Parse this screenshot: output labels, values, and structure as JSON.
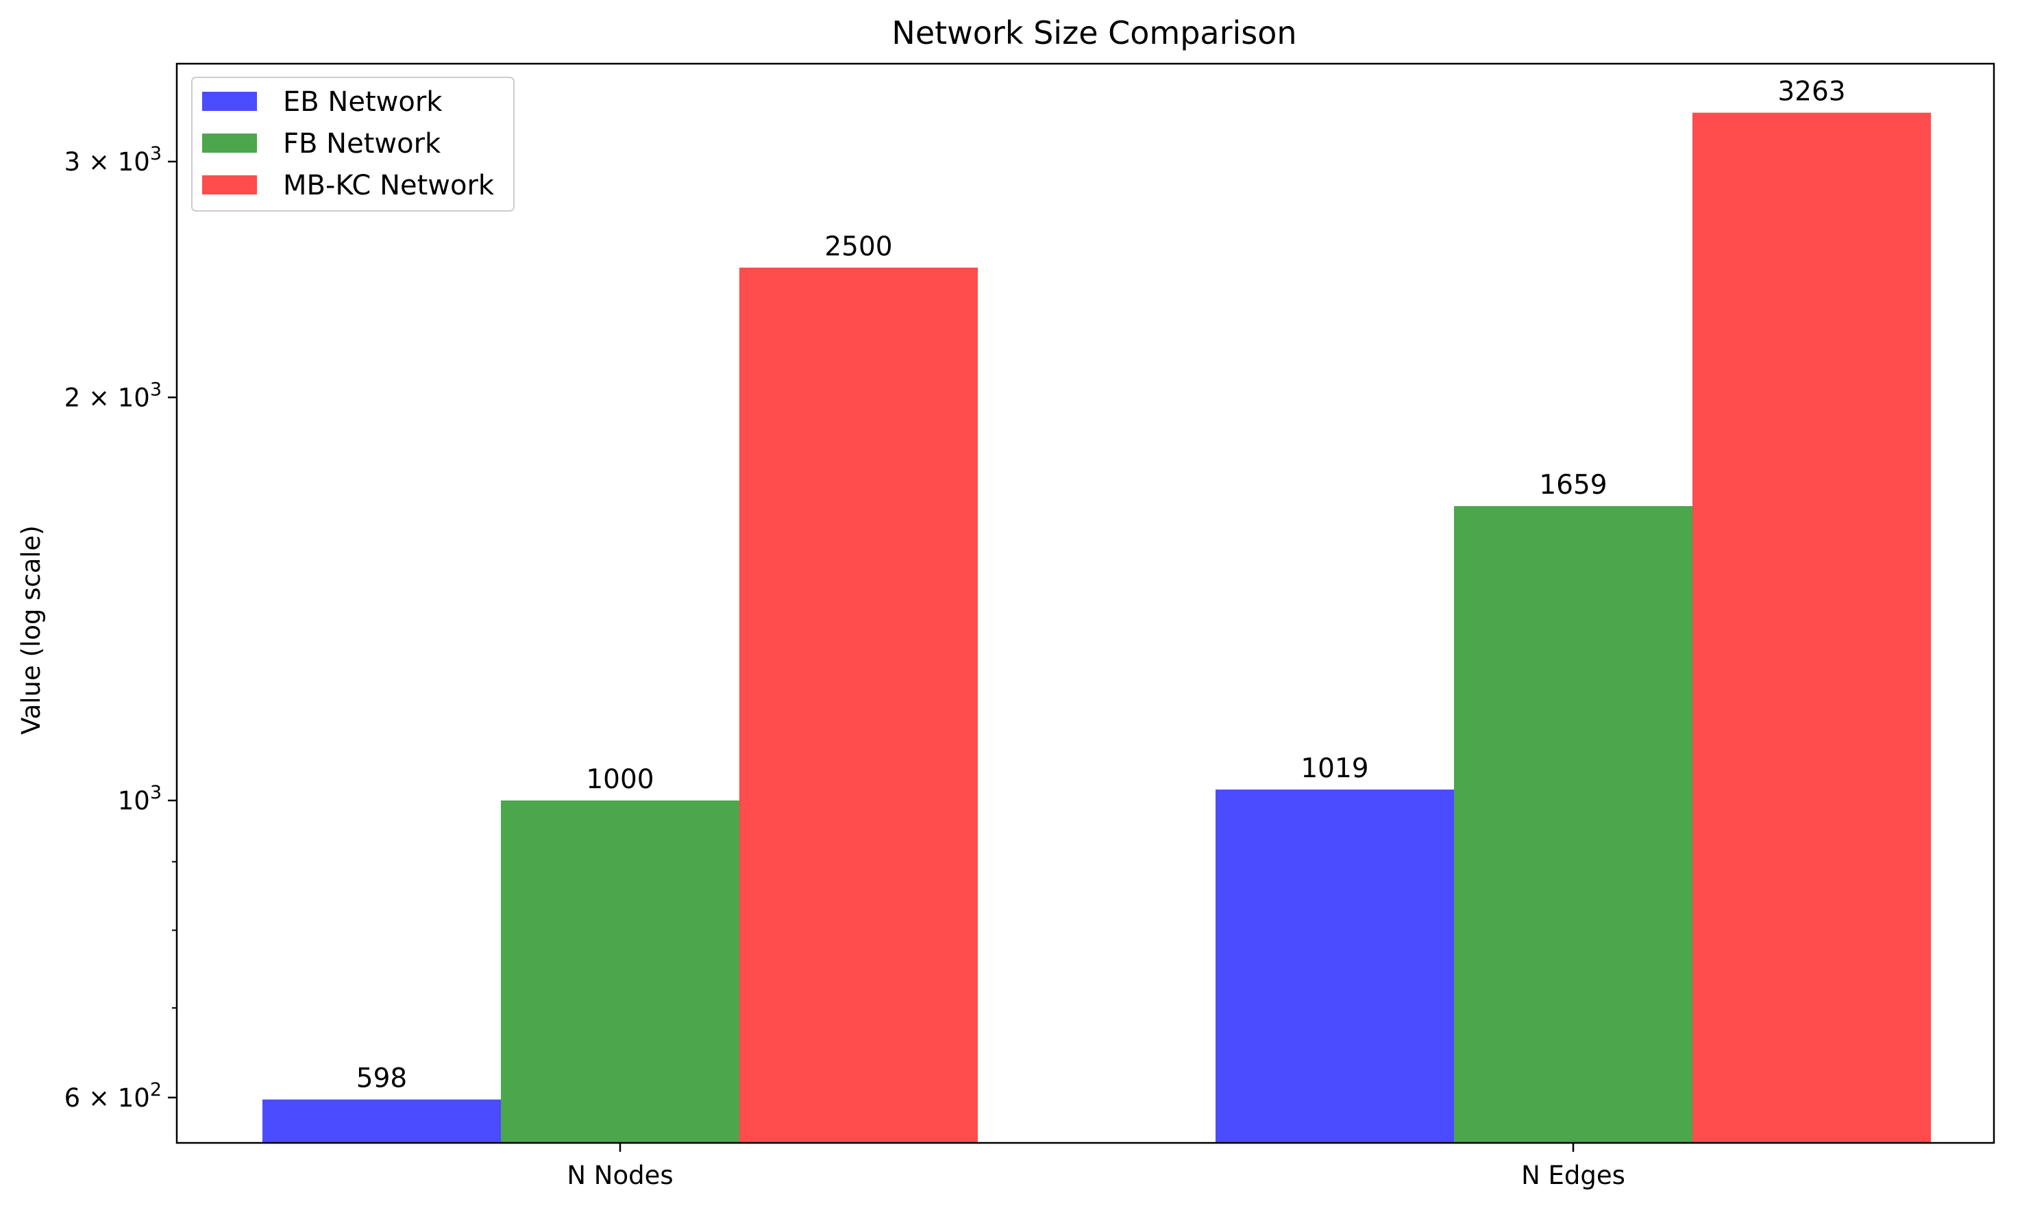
{
  "chart_data": {
    "type": "bar",
    "title": "Network Size Comparison",
    "xlabel": "",
    "ylabel": "Value (log scale)",
    "yscale": "log",
    "ylim": [
      555,
      3550
    ],
    "yticks": [
      {
        "value": 600,
        "mantissa": "6",
        "base": "10",
        "exp": "2"
      },
      {
        "value": 1000,
        "mantissa": "",
        "base": "10",
        "exp": "3"
      },
      {
        "value": 2000,
        "mantissa": "2",
        "base": "10",
        "exp": "3"
      },
      {
        "value": 3000,
        "mantissa": "3",
        "base": "10",
        "exp": "3"
      }
    ],
    "categories": [
      "N Nodes",
      "N Edges"
    ],
    "series": [
      {
        "name": "EB Network",
        "color": "#4b4bff",
        "values": [
          598,
          1019
        ]
      },
      {
        "name": "FB Network",
        "color": "#4ca64c",
        "values": [
          1000,
          1659
        ]
      },
      {
        "name": "MB-KC Network",
        "color": "#ff4c4c",
        "values": [
          2500,
          3263
        ]
      }
    ],
    "legend": "upper-left",
    "grid": false
  }
}
